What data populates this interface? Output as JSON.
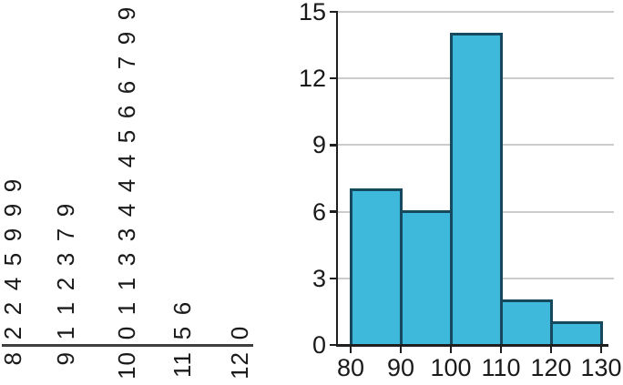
{
  "chart_data": [
    {
      "type": "table",
      "name": "stem-and-leaf-plot",
      "orientation": "rotated-90-ccw-leaves-upward",
      "rows": [
        {
          "stem": "8",
          "leaves": [
            "2",
            "2",
            "4",
            "5",
            "9",
            "9",
            "9"
          ]
        },
        {
          "stem": "9",
          "leaves": [
            "1",
            "1",
            "2",
            "3",
            "7",
            "9"
          ]
        },
        {
          "stem": "10",
          "leaves": [
            "0",
            "1",
            "1",
            "3",
            "3",
            "4",
            "4",
            "4",
            "5",
            "6",
            "6",
            "7",
            "9",
            "9"
          ]
        },
        {
          "stem": "11",
          "leaves": [
            "5",
            "6"
          ]
        },
        {
          "stem": "12",
          "leaves": [
            "0"
          ]
        }
      ]
    },
    {
      "type": "bar",
      "subtype": "histogram",
      "categories": [
        "80-90",
        "90-100",
        "100-110",
        "110-120",
        "120-130"
      ],
      "values": [
        7,
        6,
        14,
        2,
        1
      ],
      "bins": [
        {
          "start": 80,
          "end": 90,
          "count": 7
        },
        {
          "start": 90,
          "end": 100,
          "count": 6
        },
        {
          "start": 100,
          "end": 110,
          "count": 14
        },
        {
          "start": 110,
          "end": 120,
          "count": 2
        },
        {
          "start": 120,
          "end": 130,
          "count": 1
        }
      ],
      "x_tick_labels": [
        "80",
        "90",
        "100",
        "110",
        "120",
        "130"
      ],
      "y_tick_labels": [
        "0",
        "3",
        "6",
        "9",
        "12",
        "15"
      ],
      "xlim": [
        80,
        130
      ],
      "ylim": [
        0,
        15
      ],
      "grid": true,
      "legend": "none",
      "title": ""
    }
  ],
  "colors": {
    "background": "#ffffff",
    "bar_fill": "#3EB9DC",
    "bar_border": "#17495E",
    "grid": "#cccccc",
    "axis": "#1f1f1f",
    "text": "#1a1a1a",
    "stem_leaf_baseline": "#3f3f3f"
  }
}
